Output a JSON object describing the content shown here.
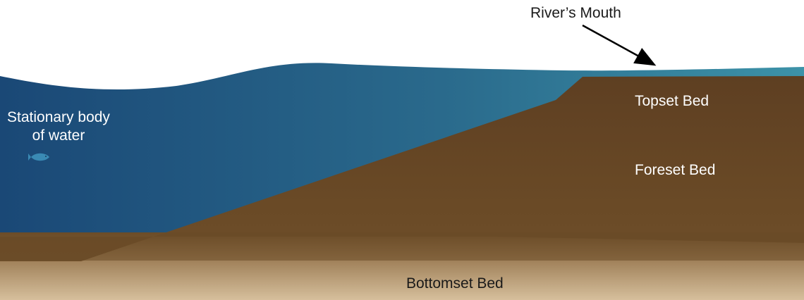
{
  "diagram": {
    "labels": {
      "river_mouth": "River’s Mouth",
      "stationary_line1": "Stationary body",
      "stationary_line2": "of water",
      "topset": "Topset Bed",
      "foreset": "Foreset Bed",
      "bottomset": "Bottomset Bed"
    },
    "colors": {
      "water_deep": "#1a4a7a",
      "water_mid": "#2a6a8c",
      "water_shallow": "#3a8ea8",
      "sediment": "#6a4a26",
      "sediment_dark": "#5e3f20",
      "bottomset_top": "#7a5a34",
      "bottomset_bottom": "#d4bc98",
      "arrow": "#000000",
      "fish": "#3a8ab4"
    }
  }
}
